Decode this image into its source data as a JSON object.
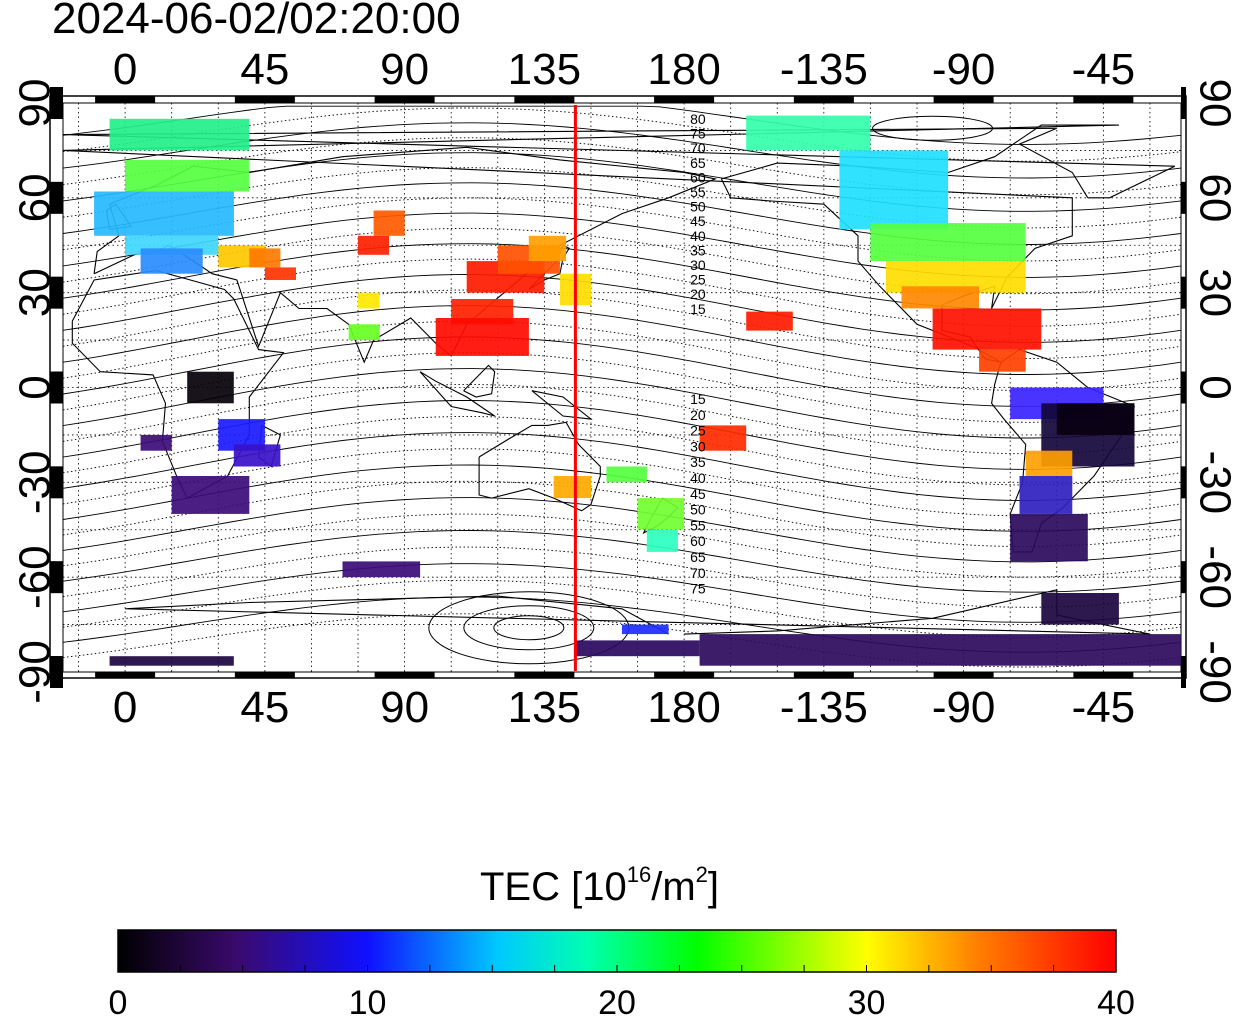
{
  "timestamp": "2024-06-02/02:20:00",
  "axes": {
    "lon_ticks": [
      "0",
      "45",
      "90",
      "135",
      "180",
      "-135",
      "-90",
      "-45"
    ],
    "lat_ticks": [
      "90",
      "60",
      "30",
      "0",
      "-30",
      "-60",
      "-90"
    ]
  },
  "contour_labels_north": [
    "80",
    "75",
    "70",
    "65",
    "60",
    "55",
    "50",
    "45",
    "40",
    "35",
    "30",
    "25",
    "20",
    "15"
  ],
  "contour_labels_south": [
    "15",
    "20",
    "25",
    "30",
    "35",
    "40",
    "45",
    "50",
    "55",
    "60",
    "65",
    "70",
    "75"
  ],
  "colorbar": {
    "label_main": "TEC  [10",
    "label_sup1": "16",
    "label_mid": "/m",
    "label_sup2": "2",
    "label_end": "]",
    "ticks": [
      "0",
      "10",
      "20",
      "30",
      "40"
    ],
    "range": [
      0,
      40
    ],
    "colors": [
      "#000000",
      "#3a0a6e",
      "#0000ff",
      "#00c8ff",
      "#00ffa0",
      "#00ff00",
      "#ffff00",
      "#ff7f00",
      "#ff0000"
    ]
  },
  "marker_longitude": 145,
  "marker_color": "#ff0000"
}
